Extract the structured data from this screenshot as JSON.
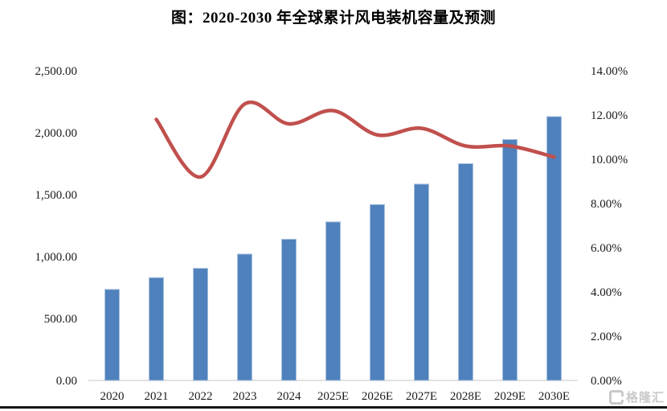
{
  "title": "图：2020-2030 年全球累计风电装机容量及预测",
  "watermark": {
    "text": "格隆汇"
  },
  "colors": {
    "bar_fill": "#4F81BD",
    "bar_edge": "#a9c1de",
    "line_stroke": "#C0504D",
    "axis_line": "#d9d9d9",
    "tick_text": "#1a1a1a"
  },
  "chart_data": {
    "type": "bar",
    "subtype": "bar+line-combo",
    "title": "图：2020-2030 年全球累计风电装机容量及预测",
    "categories": [
      "2020",
      "2021",
      "2022",
      "2023",
      "2024",
      "2025E",
      "2026E",
      "2027E",
      "2028E",
      "2029E",
      "2030E"
    ],
    "series": [
      {
        "name": "cumulative-wind-capacity",
        "type": "bar",
        "axis": "left",
        "color": "#4F81BD",
        "values": [
          735,
          830,
          905,
          1020,
          1140,
          1280,
          1420,
          1585,
          1750,
          1945,
          2130
        ]
      },
      {
        "name": "growth-rate",
        "type": "line",
        "axis": "right",
        "color": "#C0504D",
        "smooth": true,
        "values": [
          null,
          11.8,
          9.2,
          12.5,
          11.6,
          12.2,
          11.1,
          11.4,
          10.6,
          10.6,
          10.1
        ]
      }
    ],
    "left_axis": {
      "min": 0,
      "max": 2500,
      "step": 500,
      "tick_labels": [
        "0.00",
        "500.00",
        "1,000.00",
        "1,500.00",
        "2,000.00",
        "2,500.00"
      ]
    },
    "right_axis": {
      "min": 0,
      "max": 14,
      "step": 2,
      "tick_labels": [
        "0.00%",
        "2.00%",
        "4.00%",
        "6.00%",
        "8.00%",
        "10.00%",
        "12.00%",
        "14.00%"
      ]
    },
    "grid": false,
    "legend": "none",
    "xlabel": "",
    "ylabel": ""
  }
}
